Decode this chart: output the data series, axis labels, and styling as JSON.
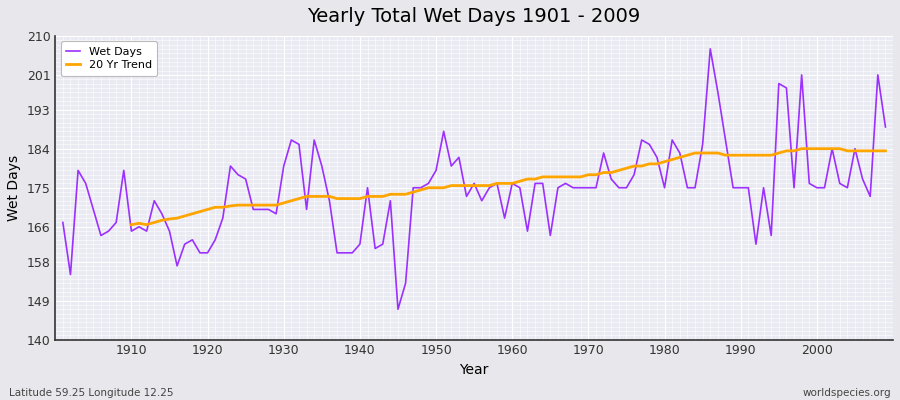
{
  "title": "Yearly Total Wet Days 1901 - 2009",
  "xlabel": "Year",
  "ylabel": "Wet Days",
  "lat_lon_label": "Latitude 59.25 Longitude 12.25",
  "source_label": "worldspecies.org",
  "ylim": [
    140,
    210
  ],
  "yticks": [
    140,
    149,
    158,
    166,
    175,
    184,
    193,
    201,
    210
  ],
  "xticks": [
    1910,
    1920,
    1930,
    1940,
    1950,
    1960,
    1970,
    1980,
    1990,
    2000
  ],
  "start_year": 1901,
  "end_year": 2009,
  "wet_days": [
    167,
    155,
    179,
    176,
    170,
    164,
    165,
    167,
    179,
    165,
    166,
    165,
    172,
    169,
    165,
    157,
    162,
    163,
    160,
    160,
    163,
    168,
    180,
    178,
    177,
    170,
    170,
    170,
    169,
    180,
    186,
    185,
    170,
    186,
    180,
    172,
    160,
    160,
    160,
    162,
    175,
    161,
    162,
    172,
    147,
    153,
    175,
    175,
    176,
    179,
    188,
    180,
    182,
    173,
    176,
    172,
    175,
    176,
    168,
    176,
    175,
    165,
    176,
    176,
    164,
    175,
    176,
    175,
    175,
    175,
    175,
    183,
    177,
    175,
    175,
    178,
    186,
    185,
    182,
    175,
    186,
    183,
    175,
    175,
    185,
    207,
    197,
    186,
    175,
    175,
    175,
    162,
    175,
    164,
    199,
    198,
    175,
    201,
    176,
    175,
    175,
    184,
    176,
    175,
    184,
    177,
    173,
    201,
    189
  ],
  "trend_20yr": [
    null,
    null,
    null,
    null,
    null,
    null,
    null,
    null,
    null,
    166.5,
    166.8,
    166.5,
    167.0,
    167.5,
    167.8,
    168.0,
    168.5,
    169.0,
    169.5,
    170.0,
    170.5,
    170.5,
    170.8,
    171.0,
    171.0,
    171.0,
    171.0,
    171.0,
    171.0,
    171.5,
    172.0,
    172.5,
    173.0,
    173.0,
    173.0,
    173.0,
    172.5,
    172.5,
    172.5,
    172.5,
    173.0,
    173.0,
    173.0,
    173.5,
    173.5,
    173.5,
    174.0,
    174.5,
    175.0,
    175.0,
    175.0,
    175.5,
    175.5,
    175.5,
    175.5,
    175.5,
    175.5,
    176.0,
    176.0,
    176.0,
    176.5,
    177.0,
    177.0,
    177.5,
    177.5,
    177.5,
    177.5,
    177.5,
    177.5,
    178.0,
    178.0,
    178.5,
    178.5,
    179.0,
    179.5,
    180.0,
    180.0,
    180.5,
    180.5,
    181.0,
    181.5,
    182.0,
    182.5,
    183.0,
    183.0,
    183.0,
    183.0,
    182.5,
    182.5,
    182.5,
    182.5,
    182.5,
    182.5,
    182.5,
    183.0,
    183.5,
    183.5,
    184.0,
    184.0,
    184.0,
    184.0,
    184.0,
    184.0,
    183.5,
    183.5,
    183.5,
    183.5,
    183.5,
    183.5
  ],
  "line_color_wet": "#9B30FF",
  "line_color_trend": "#FFA500",
  "bg_color": "#E8E8EC",
  "plot_bg": "#EAEAF2",
  "grid_color": "#FFFFFF",
  "spine_color": "#333333",
  "tick_label_color": "#333333"
}
